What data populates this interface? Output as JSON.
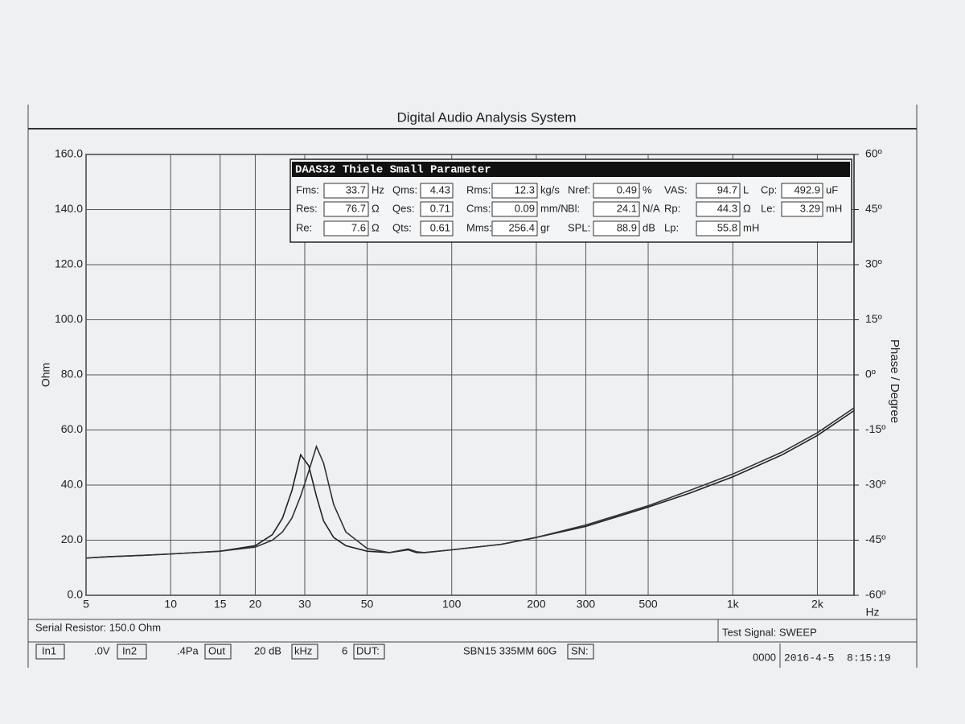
{
  "chart_data": {
    "type": "line",
    "title": "Digital Audio Analysis System",
    "ylabel": "Ohm",
    "y2label": "Phase / Degree",
    "xlabel": "Hz",
    "xscale": "log",
    "grid": true,
    "xlim": [
      5,
      2700
    ],
    "xticks": [
      5,
      10,
      15,
      20,
      30,
      50,
      100,
      200,
      300,
      500,
      {
        "value": 1000,
        "label": "1k"
      },
      {
        "value": 2000,
        "label": "2k"
      }
    ],
    "ylim": [
      0,
      160
    ],
    "yticks": [
      {
        "value": 0,
        "label": "0.0"
      },
      {
        "value": 20,
        "label": "20.0"
      },
      {
        "value": 40,
        "label": "40.0"
      },
      {
        "value": 60,
        "label": "60.0"
      },
      {
        "value": 80,
        "label": "80.0"
      },
      {
        "value": 100,
        "label": "100.0"
      },
      {
        "value": 120,
        "label": "120.0"
      },
      {
        "value": 140,
        "label": "140.0"
      },
      {
        "value": 160,
        "label": "160.0"
      }
    ],
    "y2lim": [
      -60,
      60
    ],
    "y2ticks": [
      {
        "value": -60,
        "label": "-60º"
      },
      {
        "value": -45,
        "label": "-45º"
      },
      {
        "value": -30,
        "label": "-30º"
      },
      {
        "value": -15,
        "label": "-15º"
      },
      {
        "value": 0,
        "label": "0º"
      },
      {
        "value": 15,
        "label": "15º"
      },
      {
        "value": 30,
        "label": "30º"
      },
      {
        "value": 45,
        "label": "45º"
      },
      {
        "value": 60,
        "label": "60º"
      }
    ],
    "x": [
      5,
      6,
      8,
      10,
      15,
      20,
      23,
      25,
      27,
      29,
      31,
      33,
      35,
      38,
      42,
      50,
      60,
      70,
      75,
      80,
      100,
      150,
      200,
      300,
      500,
      700,
      1000,
      1500,
      2000,
      2700
    ],
    "series": [
      {
        "color": "#222222",
        "values": [
          13.5,
          14,
          14.5,
          15,
          16,
          18,
          22,
          28,
          38,
          51,
          47,
          36,
          27,
          21,
          18,
          16,
          15.5,
          16.5,
          15.5,
          15.5,
          16.5,
          18.5,
          21,
          25,
          32,
          37,
          43,
          51,
          58,
          67
        ]
      },
      {
        "color": "#333333",
        "values": [
          13.5,
          14,
          14.5,
          15,
          16,
          17.5,
          20,
          23,
          28,
          36,
          45,
          54,
          48,
          33,
          23,
          17,
          15.5,
          16.8,
          15.8,
          15.5,
          16.5,
          18.5,
          21,
          25.5,
          32.5,
          38,
          44,
          52,
          59,
          68
        ]
      }
    ],
    "parameters_title": "DAAS32 Thiele Small Parameter",
    "parameters": [
      [
        {
          "label": "Fms:",
          "value": 33.7,
          "unit": "Hz"
        },
        {
          "label": "Qms:",
          "value": 4.43
        },
        {
          "label": "Rms:",
          "value": 12.3,
          "unit": "kg/s"
        },
        {
          "label": "Nref:",
          "value": 0.49,
          "unit": "%"
        },
        {
          "label": "VAS:",
          "value": 94.7,
          "unit": "L"
        },
        {
          "label": "Cp:",
          "value": 492.9,
          "unit": "uF"
        }
      ],
      [
        {
          "label": "Res:",
          "value": 76.7,
          "unit": "Ω"
        },
        {
          "label": "Qes:",
          "value": 0.71
        },
        {
          "label": "Cms:",
          "value": 0.09,
          "unit": "mm/N"
        },
        {
          "label": "Bl:",
          "value": 24.1,
          "unit": "N/A"
        },
        {
          "label": "Rp:",
          "value": 44.3,
          "unit": "Ω"
        },
        {
          "label": "Le:",
          "value": 3.29,
          "unit": "mH"
        }
      ],
      [
        {
          "label": "Re:",
          "value": 7.6,
          "unit": "Ω"
        },
        {
          "label": "Qts:",
          "value": 0.61
        },
        {
          "label": "Mms:",
          "value": 256.4,
          "unit": "gr"
        },
        {
          "label": "SPL:",
          "value": 88.9,
          "unit": "dB"
        },
        {
          "label": "Lp:",
          "value": 55.8,
          "unit": "mH"
        }
      ]
    ],
    "serial_resistor": "Serial Resistor: 150.0 Ohm",
    "test_signal": "Test Signal: SWEEP",
    "footer": {
      "in1": "In1",
      "in1_value": ".0V",
      "in2": "In2",
      "in2_value": ".4Pa",
      "out": "Out",
      "out_value": "20 dB",
      "khz": "kHz",
      "khz_value": "6",
      "dut": "DUT:",
      "dut_value": "SBN15 335MM 60G",
      "sn": "SN:",
      "counter": "0000",
      "timestamp": "2016-4-5  8:15:19"
    }
  }
}
